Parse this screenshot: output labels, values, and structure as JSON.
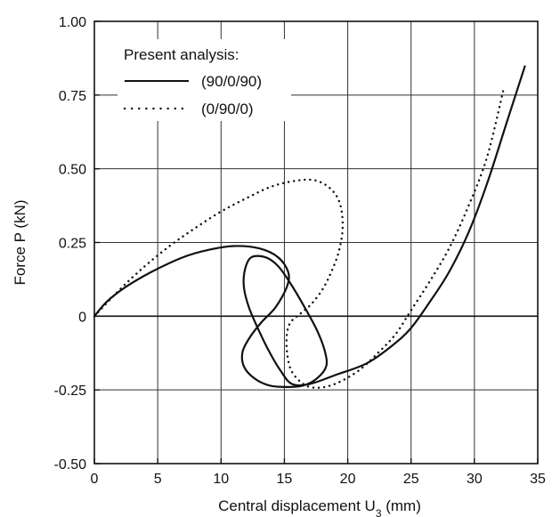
{
  "chart_data": {
    "type": "line",
    "xlabel": "Central displacement U",
    "xlabel_sub": "3",
    "xlabel_unit": " (mm)",
    "ylabel": "Force P (kN)",
    "xlim": [
      0,
      35
    ],
    "ylim": [
      -0.5,
      1.0
    ],
    "x_ticks": [
      0,
      5,
      10,
      15,
      20,
      25,
      30,
      35
    ],
    "x_tick_labels": [
      "0",
      "5",
      "10",
      "15",
      "20",
      "25",
      "30",
      "35"
    ],
    "y_ticks": [
      -0.5,
      -0.25,
      0,
      0.25,
      0.5,
      0.75,
      1.0
    ],
    "y_tick_labels": [
      "-0.50",
      "-0.25",
      "0",
      "0.25",
      "0.50",
      "0.75",
      "1.00"
    ],
    "grid": true,
    "legend": {
      "title": "Present analysis:",
      "placement": "top-left"
    },
    "series": [
      {
        "name": "(90/0/90)",
        "style": "solid",
        "color": "#111111",
        "points": [
          [
            0,
            0
          ],
          [
            1,
            0.05
          ],
          [
            2.5,
            0.1
          ],
          [
            4.5,
            0.15
          ],
          [
            7,
            0.2
          ],
          [
            9,
            0.225
          ],
          [
            11,
            0.238
          ],
          [
            13,
            0.23
          ],
          [
            14.5,
            0.2
          ],
          [
            15.3,
            0.15
          ],
          [
            15.2,
            0.1
          ],
          [
            14.3,
            0.03
          ],
          [
            13.2,
            -0.02
          ],
          [
            12.3,
            -0.07
          ],
          [
            11.7,
            -0.12
          ],
          [
            11.8,
            -0.17
          ],
          [
            12.6,
            -0.21
          ],
          [
            13.8,
            -0.235
          ],
          [
            15.2,
            -0.24
          ],
          [
            16.5,
            -0.235
          ],
          [
            17.6,
            -0.21
          ],
          [
            18.3,
            -0.17
          ],
          [
            18.2,
            -0.12
          ],
          [
            17.6,
            -0.05
          ],
          [
            16.6,
            0.03
          ],
          [
            15.5,
            0.11
          ],
          [
            14.5,
            0.17
          ],
          [
            13.5,
            0.2
          ],
          [
            12.4,
            0.2
          ],
          [
            11.9,
            0.16
          ],
          [
            11.8,
            0.1
          ],
          [
            12.2,
            0.03
          ],
          [
            13,
            -0.05
          ],
          [
            13.8,
            -0.12
          ],
          [
            14.7,
            -0.185
          ],
          [
            15.6,
            -0.23
          ],
          [
            17,
            -0.23
          ],
          [
            19,
            -0.2
          ],
          [
            21.5,
            -0.16
          ],
          [
            23.5,
            -0.1
          ],
          [
            25,
            -0.04
          ],
          [
            26.5,
            0.05
          ],
          [
            28,
            0.15
          ],
          [
            29.5,
            0.28
          ],
          [
            31,
            0.45
          ],
          [
            32.5,
            0.65
          ],
          [
            34,
            0.85
          ]
        ]
      },
      {
        "name": "(0/90/0)",
        "style": "dotted",
        "color": "#111111",
        "points": [
          [
            0,
            0
          ],
          [
            2,
            0.09
          ],
          [
            4,
            0.17
          ],
          [
            6,
            0.24
          ],
          [
            8,
            0.3
          ],
          [
            10,
            0.355
          ],
          [
            12,
            0.4
          ],
          [
            14,
            0.44
          ],
          [
            16,
            0.46
          ],
          [
            17.5,
            0.46
          ],
          [
            18.7,
            0.43
          ],
          [
            19.4,
            0.38
          ],
          [
            19.6,
            0.3
          ],
          [
            19.3,
            0.22
          ],
          [
            18.7,
            0.15
          ],
          [
            18,
            0.09
          ],
          [
            17.1,
            0.04
          ],
          [
            16.3,
            0.01
          ],
          [
            15.5,
            -0.02
          ],
          [
            15.2,
            -0.06
          ],
          [
            15.2,
            -0.12
          ],
          [
            15.5,
            -0.18
          ],
          [
            16.2,
            -0.22
          ],
          [
            17,
            -0.24
          ],
          [
            18.2,
            -0.24
          ],
          [
            19.5,
            -0.22
          ],
          [
            21,
            -0.18
          ],
          [
            22.5,
            -0.12
          ],
          [
            23.8,
            -0.06
          ],
          [
            25,
            0.02
          ],
          [
            26.5,
            0.12
          ],
          [
            28,
            0.23
          ],
          [
            29.5,
            0.37
          ],
          [
            31,
            0.54
          ],
          [
            32.3,
            0.77
          ]
        ]
      }
    ]
  }
}
